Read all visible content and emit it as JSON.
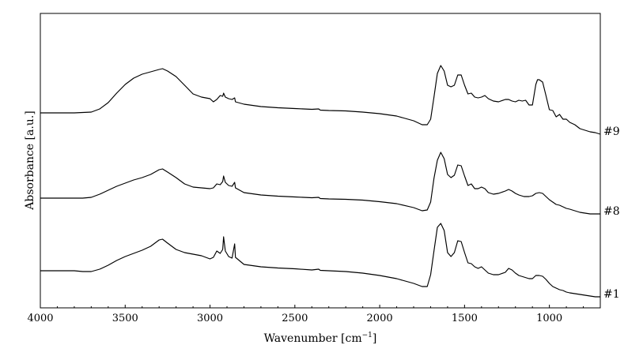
{
  "chart_data": {
    "type": "line",
    "title": "",
    "xlabel": "Wavenumber [cm",
    "xlabel_sup": "−1",
    "xlabel_close": "]",
    "ylabel": "Absorbance [a.u.]",
    "xlim": [
      4000,
      700
    ],
    "x_reversed": true,
    "y_ticks_shown": false,
    "grid": false,
    "legend": "none",
    "stacked_offset": true,
    "xticks": [
      4000,
      3500,
      3000,
      2500,
      2000,
      1500,
      1000
    ],
    "xtick_labels": [
      "4000",
      "3500",
      "3000",
      "2500",
      "2000",
      "1500",
      "1000"
    ],
    "line_color": "#000000",
    "series": [
      {
        "name": "#9",
        "offset": 2.15,
        "points": [
          [
            4000,
            0.2
          ],
          [
            3900,
            0.2
          ],
          [
            3800,
            0.2
          ],
          [
            3700,
            0.21
          ],
          [
            3650,
            0.25
          ],
          [
            3600,
            0.33
          ],
          [
            3550,
            0.45
          ],
          [
            3500,
            0.56
          ],
          [
            3450,
            0.64
          ],
          [
            3400,
            0.69
          ],
          [
            3350,
            0.72
          ],
          [
            3300,
            0.75
          ],
          [
            3280,
            0.76
          ],
          [
            3250,
            0.73
          ],
          [
            3200,
            0.66
          ],
          [
            3150,
            0.55
          ],
          [
            3100,
            0.44
          ],
          [
            3050,
            0.4
          ],
          [
            3000,
            0.38
          ],
          [
            2980,
            0.34
          ],
          [
            2960,
            0.37
          ],
          [
            2940,
            0.42
          ],
          [
            2925,
            0.41
          ],
          [
            2920,
            0.45
          ],
          [
            2910,
            0.4
          ],
          [
            2890,
            0.38
          ],
          [
            2870,
            0.37
          ],
          [
            2855,
            0.39
          ],
          [
            2850,
            0.34
          ],
          [
            2800,
            0.31
          ],
          [
            2700,
            0.28
          ],
          [
            2600,
            0.265
          ],
          [
            2500,
            0.255
          ],
          [
            2400,
            0.245
          ],
          [
            2360,
            0.25
          ],
          [
            2350,
            0.235
          ],
          [
            2300,
            0.23
          ],
          [
            2200,
            0.225
          ],
          [
            2100,
            0.21
          ],
          [
            2000,
            0.19
          ],
          [
            1900,
            0.16
          ],
          [
            1800,
            0.1
          ],
          [
            1750,
            0.05
          ],
          [
            1720,
            0.05
          ],
          [
            1700,
            0.12
          ],
          [
            1680,
            0.4
          ],
          [
            1660,
            0.7
          ],
          [
            1640,
            0.8
          ],
          [
            1620,
            0.73
          ],
          [
            1600,
            0.55
          ],
          [
            1580,
            0.53
          ],
          [
            1560,
            0.55
          ],
          [
            1540,
            0.68
          ],
          [
            1520,
            0.68
          ],
          [
            1500,
            0.55
          ],
          [
            1480,
            0.44
          ],
          [
            1460,
            0.45
          ],
          [
            1440,
            0.4
          ],
          [
            1420,
            0.39
          ],
          [
            1400,
            0.4
          ],
          [
            1380,
            0.42
          ],
          [
            1360,
            0.38
          ],
          [
            1330,
            0.35
          ],
          [
            1300,
            0.34
          ],
          [
            1260,
            0.37
          ],
          [
            1240,
            0.37
          ],
          [
            1220,
            0.35
          ],
          [
            1200,
            0.34
          ],
          [
            1180,
            0.36
          ],
          [
            1160,
            0.35
          ],
          [
            1140,
            0.36
          ],
          [
            1120,
            0.3
          ],
          [
            1100,
            0.3
          ],
          [
            1080,
            0.56
          ],
          [
            1070,
            0.62
          ],
          [
            1060,
            0.62
          ],
          [
            1040,
            0.59
          ],
          [
            1020,
            0.42
          ],
          [
            1000,
            0.24
          ],
          [
            980,
            0.23
          ],
          [
            960,
            0.15
          ],
          [
            940,
            0.18
          ],
          [
            920,
            0.12
          ],
          [
            900,
            0.12
          ],
          [
            880,
            0.08
          ],
          [
            850,
            0.05
          ],
          [
            820,
            0.0
          ],
          [
            790,
            -0.02
          ],
          [
            760,
            -0.04
          ],
          [
            730,
            -0.05
          ],
          [
            700,
            -0.07
          ]
        ]
      },
      {
        "name": "#8",
        "offset": 1.07,
        "points": [
          [
            4000,
            0.2
          ],
          [
            3900,
            0.2
          ],
          [
            3800,
            0.2
          ],
          [
            3750,
            0.2
          ],
          [
            3700,
            0.21
          ],
          [
            3650,
            0.25
          ],
          [
            3600,
            0.3
          ],
          [
            3550,
            0.35
          ],
          [
            3500,
            0.39
          ],
          [
            3450,
            0.43
          ],
          [
            3400,
            0.46
          ],
          [
            3350,
            0.5
          ],
          [
            3300,
            0.56
          ],
          [
            3280,
            0.57
          ],
          [
            3250,
            0.53
          ],
          [
            3200,
            0.46
          ],
          [
            3150,
            0.38
          ],
          [
            3100,
            0.34
          ],
          [
            3050,
            0.33
          ],
          [
            3000,
            0.32
          ],
          [
            2980,
            0.33
          ],
          [
            2960,
            0.38
          ],
          [
            2940,
            0.37
          ],
          [
            2925,
            0.41
          ],
          [
            2920,
            0.48
          ],
          [
            2910,
            0.4
          ],
          [
            2890,
            0.36
          ],
          [
            2870,
            0.35
          ],
          [
            2855,
            0.4
          ],
          [
            2850,
            0.33
          ],
          [
            2800,
            0.27
          ],
          [
            2700,
            0.24
          ],
          [
            2600,
            0.225
          ],
          [
            2500,
            0.215
          ],
          [
            2400,
            0.205
          ],
          [
            2360,
            0.21
          ],
          [
            2350,
            0.195
          ],
          [
            2300,
            0.19
          ],
          [
            2200,
            0.185
          ],
          [
            2100,
            0.175
          ],
          [
            2000,
            0.155
          ],
          [
            1900,
            0.13
          ],
          [
            1800,
            0.08
          ],
          [
            1750,
            0.04
          ],
          [
            1720,
            0.05
          ],
          [
            1700,
            0.15
          ],
          [
            1680,
            0.45
          ],
          [
            1660,
            0.68
          ],
          [
            1640,
            0.78
          ],
          [
            1620,
            0.7
          ],
          [
            1600,
            0.5
          ],
          [
            1580,
            0.46
          ],
          [
            1560,
            0.49
          ],
          [
            1540,
            0.62
          ],
          [
            1520,
            0.61
          ],
          [
            1500,
            0.48
          ],
          [
            1480,
            0.36
          ],
          [
            1460,
            0.38
          ],
          [
            1440,
            0.32
          ],
          [
            1420,
            0.32
          ],
          [
            1400,
            0.34
          ],
          [
            1380,
            0.32
          ],
          [
            1360,
            0.27
          ],
          [
            1330,
            0.25
          ],
          [
            1300,
            0.26
          ],
          [
            1260,
            0.29
          ],
          [
            1240,
            0.31
          ],
          [
            1220,
            0.29
          ],
          [
            1200,
            0.26
          ],
          [
            1180,
            0.24
          ],
          [
            1150,
            0.22
          ],
          [
            1120,
            0.22
          ],
          [
            1100,
            0.23
          ],
          [
            1080,
            0.26
          ],
          [
            1060,
            0.27
          ],
          [
            1040,
            0.26
          ],
          [
            1020,
            0.22
          ],
          [
            1000,
            0.18
          ],
          [
            980,
            0.15
          ],
          [
            960,
            0.12
          ],
          [
            940,
            0.11
          ],
          [
            920,
            0.09
          ],
          [
            900,
            0.07
          ],
          [
            880,
            0.06
          ],
          [
            850,
            0.04
          ],
          [
            820,
            0.02
          ],
          [
            790,
            0.01
          ],
          [
            760,
            0.0
          ],
          [
            730,
            0.0
          ],
          [
            700,
            0.0
          ]
        ]
      },
      {
        "name": "#1",
        "offset": 0.0,
        "points": [
          [
            4000,
            0.35
          ],
          [
            3900,
            0.35
          ],
          [
            3800,
            0.35
          ],
          [
            3750,
            0.34
          ],
          [
            3700,
            0.34
          ],
          [
            3650,
            0.37
          ],
          [
            3600,
            0.42
          ],
          [
            3550,
            0.48
          ],
          [
            3500,
            0.53
          ],
          [
            3450,
            0.57
          ],
          [
            3400,
            0.61
          ],
          [
            3350,
            0.66
          ],
          [
            3300,
            0.74
          ],
          [
            3280,
            0.75
          ],
          [
            3250,
            0.7
          ],
          [
            3200,
            0.62
          ],
          [
            3150,
            0.58
          ],
          [
            3100,
            0.56
          ],
          [
            3050,
            0.54
          ],
          [
            3000,
            0.5
          ],
          [
            2980,
            0.52
          ],
          [
            2960,
            0.6
          ],
          [
            2940,
            0.57
          ],
          [
            2925,
            0.62
          ],
          [
            2920,
            0.78
          ],
          [
            2910,
            0.6
          ],
          [
            2890,
            0.53
          ],
          [
            2870,
            0.51
          ],
          [
            2855,
            0.69
          ],
          [
            2850,
            0.52
          ],
          [
            2800,
            0.43
          ],
          [
            2700,
            0.4
          ],
          [
            2600,
            0.385
          ],
          [
            2500,
            0.375
          ],
          [
            2400,
            0.36
          ],
          [
            2360,
            0.37
          ],
          [
            2350,
            0.355
          ],
          [
            2300,
            0.35
          ],
          [
            2200,
            0.34
          ],
          [
            2100,
            0.32
          ],
          [
            2000,
            0.29
          ],
          [
            1900,
            0.25
          ],
          [
            1800,
            0.19
          ],
          [
            1750,
            0.15
          ],
          [
            1720,
            0.15
          ],
          [
            1700,
            0.3
          ],
          [
            1680,
            0.6
          ],
          [
            1660,
            0.9
          ],
          [
            1640,
            0.95
          ],
          [
            1620,
            0.86
          ],
          [
            1600,
            0.58
          ],
          [
            1580,
            0.53
          ],
          [
            1560,
            0.58
          ],
          [
            1540,
            0.73
          ],
          [
            1520,
            0.72
          ],
          [
            1500,
            0.58
          ],
          [
            1480,
            0.45
          ],
          [
            1460,
            0.44
          ],
          [
            1440,
            0.4
          ],
          [
            1420,
            0.38
          ],
          [
            1400,
            0.4
          ],
          [
            1380,
            0.36
          ],
          [
            1360,
            0.32
          ],
          [
            1330,
            0.3
          ],
          [
            1300,
            0.3
          ],
          [
            1260,
            0.33
          ],
          [
            1240,
            0.38
          ],
          [
            1220,
            0.36
          ],
          [
            1200,
            0.32
          ],
          [
            1180,
            0.29
          ],
          [
            1150,
            0.27
          ],
          [
            1120,
            0.25
          ],
          [
            1100,
            0.25
          ],
          [
            1080,
            0.29
          ],
          [
            1060,
            0.29
          ],
          [
            1040,
            0.28
          ],
          [
            1020,
            0.24
          ],
          [
            1000,
            0.19
          ],
          [
            980,
            0.15
          ],
          [
            960,
            0.13
          ],
          [
            940,
            0.11
          ],
          [
            920,
            0.1
          ],
          [
            900,
            0.08
          ],
          [
            880,
            0.07
          ],
          [
            850,
            0.06
          ],
          [
            820,
            0.05
          ],
          [
            790,
            0.04
          ],
          [
            760,
            0.03
          ],
          [
            730,
            0.02
          ],
          [
            700,
            0.02
          ]
        ]
      }
    ]
  }
}
